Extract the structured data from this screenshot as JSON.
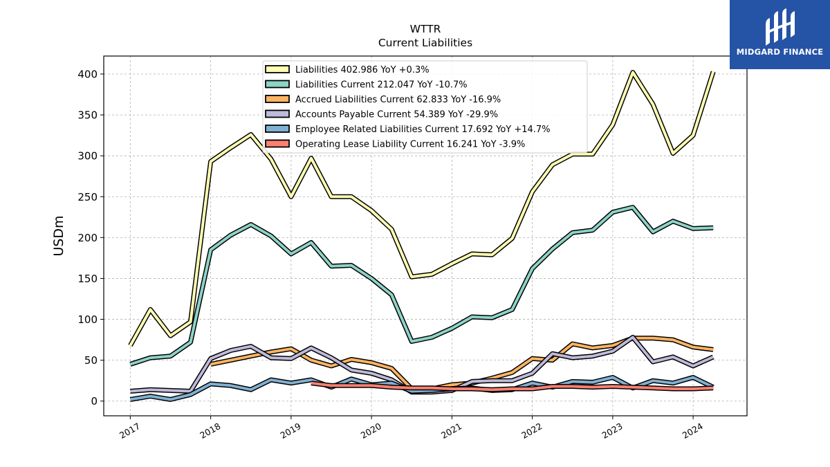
{
  "chart_data": {
    "type": "line",
    "title": "WTTR",
    "subtitle": "Current  Liabilities",
    "ylabel": "USDm",
    "xlabel": "",
    "ylim": [
      -18,
      422
    ],
    "xlim": [
      2016.67,
      2024.67
    ],
    "yticks": [
      0,
      50,
      100,
      150,
      200,
      250,
      300,
      350,
      400
    ],
    "xticks": [
      "2017",
      "2018",
      "2019",
      "2020",
      "2021",
      "2022",
      "2023",
      "2024"
    ],
    "grid": true,
    "legend_position": "top-center",
    "x": [
      2017.0,
      2017.25,
      2017.5,
      2017.75,
      2018.0,
      2018.25,
      2018.5,
      2018.75,
      2019.0,
      2019.25,
      2019.5,
      2019.75,
      2020.0,
      2020.25,
      2020.5,
      2020.75,
      2021.0,
      2021.25,
      2021.5,
      2021.75,
      2022.0,
      2022.25,
      2022.5,
      2022.75,
      2023.0,
      2023.25,
      2023.5,
      2023.75,
      2024.0,
      2024.25
    ],
    "series": [
      {
        "name": "Liabilities",
        "legend": "Liabilities  402.986 YoY +0.3%",
        "color": "#ffffb3",
        "values": [
          68,
          112,
          80,
          97,
          293,
          310,
          326,
          296,
          250,
          297,
          250,
          250,
          233,
          210,
          152,
          155,
          168,
          180,
          179,
          199,
          256,
          289,
          302,
          302,
          338,
          402,
          363,
          303,
          325,
          403
        ]
      },
      {
        "name": "Liabilities Current",
        "legend": "Liabilities Current  212.047 YoY -10.7%",
        "color": "#8dd3c7",
        "values": [
          45,
          53,
          55,
          72,
          185,
          203,
          216,
          202,
          180,
          194,
          165,
          166,
          150,
          130,
          73,
          78,
          89,
          103,
          102,
          112,
          162,
          186,
          206,
          209,
          231,
          237,
          207,
          220,
          211,
          212
        ]
      },
      {
        "name": "Accrued Liabilities Current",
        "legend": "Accrued Liabilities Current  62.833 YoY -16.9%",
        "color": "#fdb462",
        "values": [
          null,
          null,
          null,
          null,
          45,
          50,
          55,
          60,
          64,
          50,
          43,
          51,
          47,
          40,
          15,
          15,
          20,
          22,
          28,
          35,
          52,
          50,
          70,
          65,
          68,
          77,
          77,
          75,
          66,
          63
        ]
      },
      {
        "name": "Accounts Payable Current",
        "legend": "Accounts Payable Current  54.389 YoY -29.9%",
        "color": "#bebada",
        "values": [
          12,
          14,
          13,
          12,
          52,
          62,
          67,
          53,
          52,
          65,
          53,
          38,
          34,
          26,
          11,
          11,
          13,
          24,
          25,
          25,
          34,
          58,
          53,
          55,
          61,
          78,
          48,
          54,
          43,
          54
        ]
      },
      {
        "name": "Employee Related Liabilities Current",
        "legend": "Employee Related Liabilities Current  17.692 YoY +14.7%",
        "color": "#80b1d3",
        "values": [
          2,
          6,
          2,
          8,
          21,
          19,
          14,
          26,
          22,
          26,
          17,
          27,
          20,
          22,
          12,
          13,
          15,
          16,
          13,
          14,
          22,
          17,
          24,
          23,
          29,
          16,
          25,
          22,
          29,
          17
        ]
      },
      {
        "name": "Operating Lease Liability Current",
        "legend": "Operating Lease Liability Current  16.241 YoY -3.9%",
        "color": "#fb8072",
        "values": [
          null,
          null,
          null,
          null,
          null,
          null,
          null,
          null,
          null,
          22,
          19,
          19,
          19,
          17,
          16,
          16,
          15,
          15,
          14,
          15,
          15,
          18,
          18,
          17,
          18,
          17,
          16,
          15,
          15,
          16
        ]
      }
    ]
  },
  "logo": {
    "text": "MIDGARD FINANCE",
    "bg": "#2553a6"
  }
}
